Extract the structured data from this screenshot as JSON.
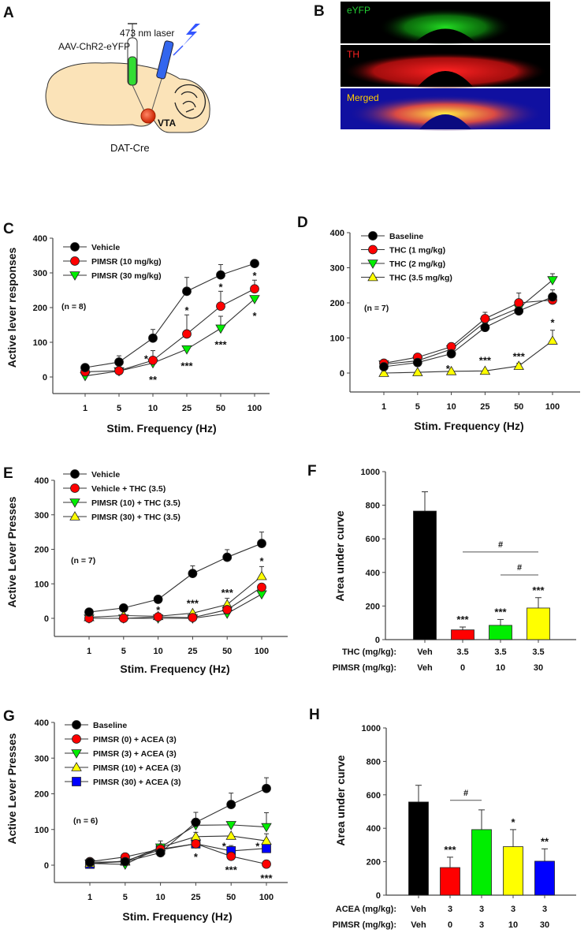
{
  "panel_labels": [
    "A",
    "B",
    "C",
    "D",
    "E",
    "F",
    "G",
    "H"
  ],
  "panel_a": {
    "virus_label": "AAV-ChR2-eYFP",
    "laser_label": "473 nm laser",
    "region_label": "VTA",
    "strain_label": "DAT-Cre",
    "colors": {
      "brain": "#fbe3b8",
      "syringe": "#33dd33",
      "fiber": "#3366ee",
      "vta": "#e8401c",
      "laser": "#3355ff"
    }
  },
  "panel_b": {
    "images": [
      {
        "label": "eYFP",
        "label_color": "#22cc33",
        "signal_color": "#22dd22",
        "background": "#000000"
      },
      {
        "label": "TH",
        "label_color": "#ff2020",
        "signal_color": "#ff1a1a",
        "background": "#000000"
      },
      {
        "label": "Merged",
        "label_color": "#ffcc00",
        "signal_color": "#ffee33",
        "background": "#1010a0"
      }
    ]
  },
  "chart_data": [
    {
      "id": "C",
      "type": "line",
      "categories": [
        "1",
        "5",
        "10",
        "25",
        "50",
        "100"
      ],
      "xlabel": "Stim. Frequency (Hz)",
      "ylabel": "Active lever responses",
      "ylim": [
        -50,
        400
      ],
      "yticks": [
        0,
        100,
        200,
        300,
        400
      ],
      "note": "(n = 8)",
      "legend": "top-left",
      "series": [
        {
          "name": "Vehicle",
          "marker": "circle",
          "color": "#000000",
          "values": [
            27,
            43,
            112,
            247,
            294,
            327
          ],
          "err": [
            5,
            18,
            25,
            40,
            30,
            5
          ]
        },
        {
          "name": "PIMSR (10 mg/kg)",
          "marker": "circle",
          "color": "#ff0000",
          "values": [
            15,
            18,
            48,
            124,
            204,
            254
          ],
          "err": [
            4,
            4,
            28,
            55,
            43,
            25
          ]
        },
        {
          "name": "PIMSR (30 mg/kg)",
          "marker": "triangle-down",
          "color": "#00ee00",
          "values": [
            3,
            17,
            40,
            80,
            140,
            225
          ],
          "err": [
            0,
            0,
            0,
            0,
            35,
            0
          ]
        }
      ],
      "annotations": [
        {
          "text": "*",
          "x": 5,
          "y": 296
        },
        {
          "text": "*",
          "x": 4,
          "y": 263
        },
        {
          "text": "*",
          "x": 3,
          "y": 196
        },
        {
          "text": "*",
          "x": 1.8,
          "y": 56
        },
        {
          "text": "**",
          "x": 2,
          "y": -5
        },
        {
          "text": "***",
          "x": 3,
          "y": 35
        },
        {
          "text": "***",
          "x": 4,
          "y": 97
        },
        {
          "text": "*",
          "x": 5,
          "y": 179
        }
      ]
    },
    {
      "id": "D",
      "type": "line",
      "categories": [
        "1",
        "5",
        "10",
        "25",
        "50",
        "100"
      ],
      "xlabel": "Stim. Frequency (Hz)",
      "ylabel": "",
      "ylim": [
        -50,
        400
      ],
      "yticks": [
        0,
        100,
        200,
        300,
        400
      ],
      "note": "(n = 7)",
      "legend": "top-left",
      "series": [
        {
          "name": "Baseline",
          "marker": "circle",
          "color": "#000000",
          "values": [
            18,
            30,
            55,
            130,
            177,
            217
          ],
          "err": [
            0,
            0,
            0,
            0,
            0,
            20
          ]
        },
        {
          "name": "THC (1 mg/kg)",
          "marker": "circle",
          "color": "#ff0000",
          "values": [
            28,
            45,
            75,
            155,
            200,
            208
          ],
          "err": [
            0,
            0,
            0,
            18,
            28,
            0
          ]
        },
        {
          "name": "THC (2 mg/kg)",
          "marker": "triangle-down",
          "color": "#00ee00",
          "values": [
            25,
            35,
            68,
            145,
            185,
            265
          ],
          "err": [
            0,
            0,
            0,
            0,
            0,
            18
          ]
        },
        {
          "name": "THC (3.5 mg/kg)",
          "marker": "triangle-up",
          "color": "#ffff00",
          "values": [
            0,
            2,
            5,
            6,
            20,
            92
          ],
          "err": [
            0,
            0,
            0,
            0,
            8,
            30
          ]
        }
      ],
      "annotations": [
        {
          "text": "*",
          "x": 1.9,
          "y": 16
        },
        {
          "text": "***",
          "x": 3,
          "y": 39
        },
        {
          "text": "***",
          "x": 4,
          "y": 51
        },
        {
          "text": "*",
          "x": 5,
          "y": 147
        }
      ]
    },
    {
      "id": "E",
      "type": "line",
      "categories": [
        "1",
        "5",
        "10",
        "25",
        "50",
        "100"
      ],
      "xlabel": "Stim. Frequency (Hz)",
      "ylabel": "Active Lever Presses",
      "ylim": [
        -50,
        400
      ],
      "yticks": [
        0,
        100,
        200,
        300,
        400
      ],
      "note": "(n = 7)",
      "legend": "top-left",
      "series": [
        {
          "name": "Vehicle",
          "marker": "circle",
          "color": "#000000",
          "values": [
            18,
            30,
            55,
            130,
            177,
            217
          ],
          "err": [
            0,
            0,
            0,
            22,
            22,
            33
          ]
        },
        {
          "name": "Vehicle + THC (3.5)",
          "marker": "circle",
          "color": "#ff0000",
          "values": [
            0,
            0,
            4,
            2,
            25,
            90
          ],
          "err": [
            0,
            0,
            0,
            0,
            0,
            0
          ]
        },
        {
          "name": "PIMSR (10) + THC (3.5)",
          "marker": "triangle-down",
          "color": "#00ee00",
          "values": [
            0,
            0,
            0,
            0,
            14,
            70
          ],
          "err": [
            0,
            0,
            0,
            0,
            0,
            0
          ]
        },
        {
          "name": "PIMSR (30) + THC (3.5)",
          "marker": "triangle-up",
          "color": "#ffff00",
          "values": [
            3,
            8,
            6,
            15,
            40,
            122
          ],
          "err": [
            0,
            0,
            0,
            0,
            18,
            28
          ]
        }
      ],
      "annotations": [
        {
          "text": "*",
          "x": 2,
          "y": 27
        },
        {
          "text": "***",
          "x": 3,
          "y": 47
        },
        {
          "text": "***",
          "x": 4,
          "y": 78
        },
        {
          "text": "*",
          "x": 5,
          "y": 169
        }
      ]
    },
    {
      "id": "F",
      "type": "bar",
      "categories": [
        "Veh",
        "3.5",
        "3.5",
        "3.5"
      ],
      "row_labels": [
        {
          "label": "THC (mg/kg):",
          "values": [
            "Veh",
            "3.5",
            "3.5",
            "3.5"
          ]
        },
        {
          "label": "PIMSR (mg/kg):",
          "values": [
            "Veh",
            "0",
            "10",
            "30"
          ]
        }
      ],
      "ylabel": "Area under curve",
      "ylim": [
        0,
        1000
      ],
      "yticks": [
        0,
        200,
        400,
        600,
        800,
        1000
      ],
      "values": [
        765,
        58,
        85,
        188
      ],
      "err": [
        115,
        17,
        35,
        62
      ],
      "colors": [
        "#000000",
        "#ff0000",
        "#00ee00",
        "#ffff00"
      ],
      "bar_labels": [
        "",
        "***",
        "***",
        "***"
      ],
      "brackets": [
        {
          "from": 1,
          "to": 3,
          "y": 522,
          "text": "#"
        },
        {
          "from": 2,
          "to": 3,
          "y": 385,
          "text": "#"
        }
      ]
    },
    {
      "id": "G",
      "type": "line",
      "categories": [
        "1",
        "5",
        "10",
        "25",
        "50",
        "100"
      ],
      "xlabel": "Stim. Frequency (Hz)",
      "ylabel": "Active Lever Presses",
      "ylim": [
        -50,
        400
      ],
      "yticks": [
        0,
        100,
        200,
        300,
        400
      ],
      "note": "(n = 6)",
      "legend": "top-left",
      "series": [
        {
          "name": "Baseline",
          "marker": "circle",
          "color": "#000000",
          "values": [
            8,
            10,
            35,
            120,
            170,
            215
          ],
          "err": [
            0,
            0,
            0,
            28,
            32,
            30
          ]
        },
        {
          "name": "PIMSR (0) + ACEA (3)",
          "marker": "circle",
          "color": "#ff0000",
          "values": [
            10,
            23,
            45,
            60,
            25,
            3
          ],
          "err": [
            0,
            0,
            0,
            0,
            0,
            0
          ]
        },
        {
          "name": "PIMSR (3) + ACEA (3)",
          "marker": "triangle-down",
          "color": "#00ee00",
          "values": [
            5,
            2,
            50,
            112,
            113,
            107
          ],
          "err": [
            0,
            0,
            0,
            0,
            0,
            40
          ]
        },
        {
          "name": "PIMSR (10) + ACEA (3)",
          "marker": "triangle-up",
          "color": "#ffff00",
          "values": [
            5,
            10,
            50,
            80,
            82,
            68
          ],
          "err": [
            0,
            0,
            18,
            12,
            0,
            20
          ]
        },
        {
          "name": "PIMSR (30) + ACEA (3)",
          "marker": "square",
          "color": "#0000ff",
          "values": [
            3,
            12,
            43,
            60,
            40,
            47
          ],
          "err": [
            0,
            0,
            0,
            0,
            15,
            0
          ]
        }
      ],
      "annotations": [
        {
          "text": "*",
          "x": 3,
          "y": 27
        },
        {
          "text": "*",
          "x": 3.8,
          "y": 56
        },
        {
          "text": "***",
          "x": 4,
          "y": -10
        },
        {
          "text": "*",
          "x": 4.75,
          "y": 56
        },
        {
          "text": "***",
          "x": 5,
          "y": -33
        }
      ]
    },
    {
      "id": "H",
      "type": "bar",
      "categories": [
        "Veh",
        "3",
        "3",
        "3",
        "3"
      ],
      "row_labels": [
        {
          "label": "ACEA (mg/kg):",
          "values": [
            "Veh",
            "3",
            "3",
            "3",
            "3"
          ]
        },
        {
          "label": "PIMSR (mg/kg):",
          "values": [
            "Veh",
            "0",
            "3",
            "10",
            "30"
          ]
        }
      ],
      "ylabel": "Area under curve",
      "ylim": [
        0,
        1000
      ],
      "yticks": [
        0,
        200,
        400,
        600,
        800,
        1000
      ],
      "values": [
        557,
        165,
        392,
        290,
        203
      ],
      "err": [
        100,
        62,
        118,
        102,
        74
      ],
      "colors": [
        "#000000",
        "#ff0000",
        "#00ee00",
        "#ffff00",
        "#0000ff"
      ],
      "bar_labels": [
        "",
        "***",
        "",
        "*",
        "**"
      ],
      "brackets": [
        {
          "from": 1,
          "to": 2,
          "y": 567,
          "text": "#"
        }
      ]
    }
  ]
}
